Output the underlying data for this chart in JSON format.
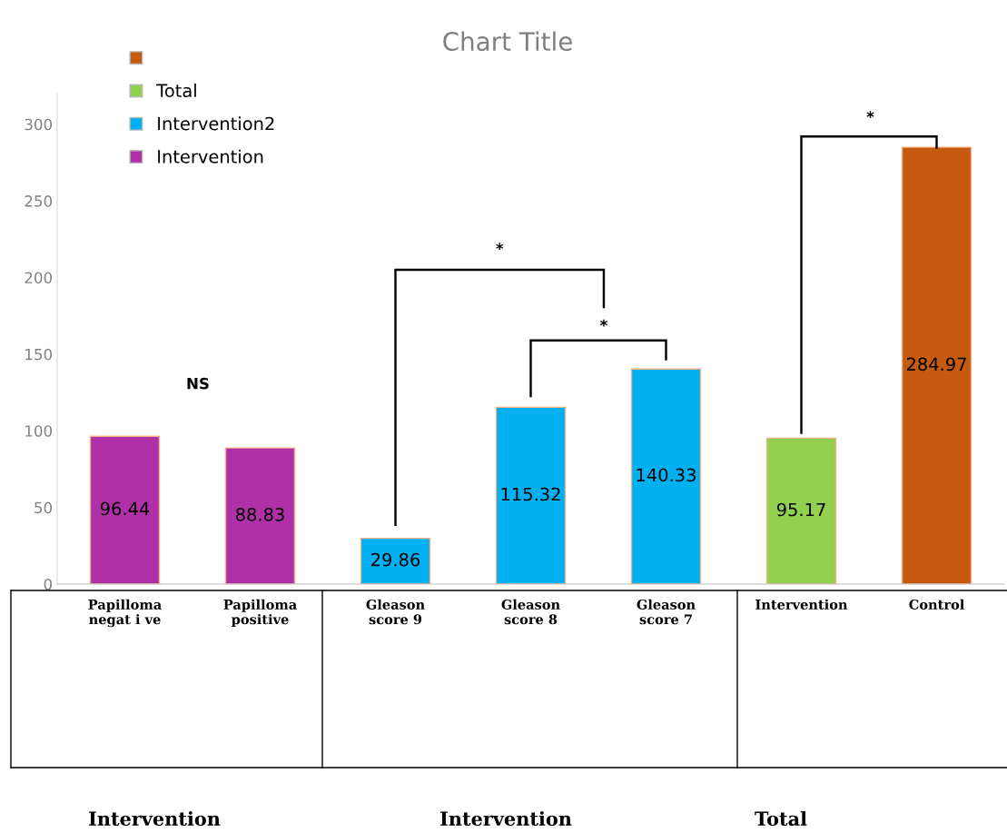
{
  "chart_data": {
    "type": "bar",
    "title": "Chart Title",
    "categories": [
      "Papilloma\nnegat i ve",
      "Papilloma\npositive",
      "Gleason\nscore 9",
      "Gleason\nscore 8",
      "Gleason\nscore 7",
      "Intervention",
      "Control"
    ],
    "series": [
      {
        "name": null,
        "color": "#c55a11",
        "values": [
          null,
          null,
          null,
          null,
          null,
          null,
          284.97
        ]
      },
      {
        "name": "Total",
        "color": "#92d050",
        "values": [
          null,
          null,
          null,
          null,
          null,
          95.17,
          null
        ]
      },
      {
        "name": "Intervention2",
        "color": "#00b0f0",
        "values": [
          null,
          null,
          29.86,
          115.32,
          140.33,
          null,
          null
        ]
      },
      {
        "name": "Intervention",
        "color": "#b030a8",
        "values": [
          96.44,
          88.83,
          null,
          null,
          null,
          null,
          null
        ]
      }
    ],
    "ylim": [
      0,
      320
    ],
    "yticks": [
      0,
      50,
      100,
      150,
      200,
      250,
      300
    ],
    "data_labels": true,
    "legend": "top left",
    "grid": false,
    "annotations": [
      "NS",
      "*",
      "*",
      "*",
      "Intervention",
      "Intervention",
      "Total"
    ]
  }
}
